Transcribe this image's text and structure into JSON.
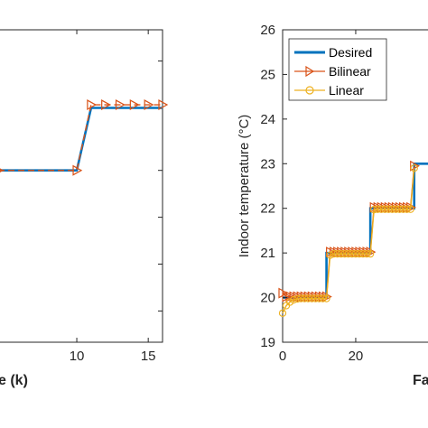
{
  "chart_data": [
    {
      "type": "line",
      "xlabel": "e (k)",
      "x_ticks": [
        "10",
        "15"
      ],
      "xlim": [
        4.5,
        16
      ],
      "ylim": [
        0,
        1
      ],
      "series": [
        {
          "color": "#0072BD",
          "marker": "none",
          "x": [
            4.5,
            10.0,
            11.0,
            16.0
          ],
          "y": [
            0.55,
            0.55,
            0.75,
            0.75
          ]
        },
        {
          "color": "#D95319",
          "marker": "triangle-right",
          "dashed": true,
          "x": [
            4.5,
            10.0,
            11.0,
            12.0,
            13.0,
            14.0,
            15.0,
            16.0
          ],
          "y": [
            0.55,
            0.55,
            0.76,
            0.76,
            0.76,
            0.76,
            0.76,
            0.76
          ]
        }
      ]
    },
    {
      "type": "line",
      "ylabel": "Indoor temperature (°C)",
      "xlabel": "Fa",
      "y_ticks": [
        "19",
        "20",
        "21",
        "22",
        "23",
        "24",
        "25",
        "26"
      ],
      "x_ticks": [
        "0",
        "20"
      ],
      "xlim": [
        0,
        42
      ],
      "ylim": [
        19,
        26
      ],
      "legend": {
        "placement": "top-left",
        "entries": [
          "Desired",
          "Bilinear",
          "Linear"
        ]
      },
      "series": [
        {
          "name": "Desired",
          "color": "#0072BD",
          "marker": "none",
          "x": [
            0,
            12,
            12,
            24,
            24,
            36,
            36,
            42
          ],
          "y": [
            20,
            20,
            21,
            21,
            22,
            22,
            23,
            23
          ]
        },
        {
          "name": "Bilinear",
          "color": "#D95319",
          "marker": "triangle-right",
          "x": [
            0,
            1,
            2,
            3,
            4,
            5,
            6,
            7,
            8,
            9,
            10,
            11,
            12,
            13,
            14,
            15,
            16,
            17,
            18,
            19,
            20,
            21,
            22,
            23,
            24,
            25,
            26,
            27,
            28,
            29,
            30,
            31,
            32,
            33,
            34,
            35,
            36
          ],
          "y": [
            20.1,
            20.02,
            20.02,
            20.02,
            20.02,
            20.02,
            20.02,
            20.02,
            20.02,
            20.02,
            20.02,
            20.02,
            20.02,
            21.02,
            21.02,
            21.02,
            21.02,
            21.02,
            21.02,
            21.02,
            21.02,
            21.02,
            21.02,
            21.02,
            21.02,
            22.02,
            22.02,
            22.02,
            22.02,
            22.02,
            22.02,
            22.02,
            22.02,
            22.02,
            22.02,
            22.02,
            22.95
          ]
        },
        {
          "name": "Linear",
          "color": "#EDB120",
          "marker": "circle",
          "x": [
            0,
            1,
            2,
            3,
            4,
            5,
            6,
            7,
            8,
            9,
            10,
            11,
            12,
            13,
            14,
            15,
            16,
            17,
            18,
            19,
            20,
            21,
            22,
            23,
            24,
            25,
            26,
            27,
            28,
            29,
            30,
            31,
            32,
            33,
            34,
            35,
            36
          ],
          "y": [
            19.65,
            19.82,
            19.9,
            19.95,
            19.97,
            19.98,
            19.98,
            19.98,
            19.98,
            19.98,
            19.98,
            19.98,
            19.98,
            20.95,
            20.98,
            20.98,
            20.98,
            20.98,
            20.98,
            20.98,
            20.98,
            20.98,
            20.98,
            20.98,
            20.98,
            21.97,
            21.98,
            21.98,
            21.98,
            21.98,
            21.98,
            21.98,
            21.98,
            21.98,
            21.98,
            21.98,
            22.9
          ]
        }
      ]
    }
  ]
}
